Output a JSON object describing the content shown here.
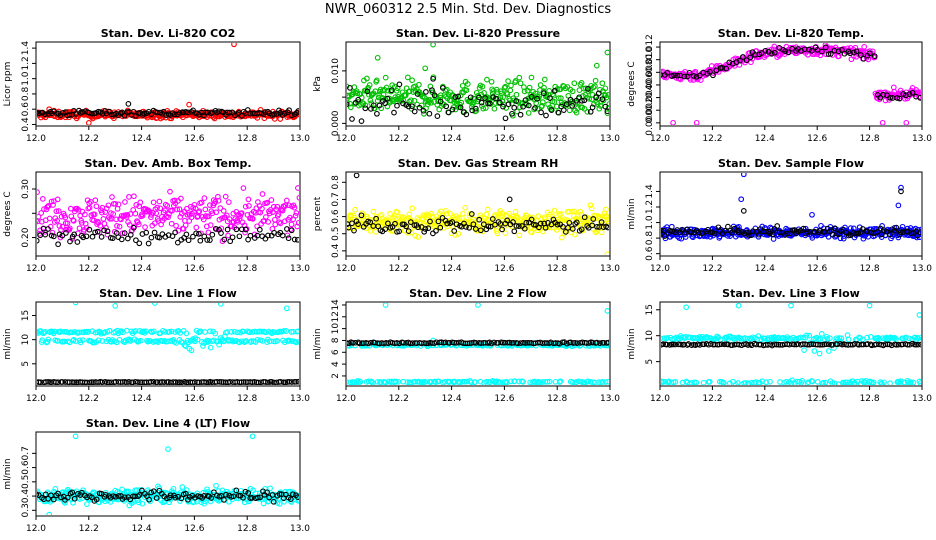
{
  "title": "NWR_060312  2.5 Min. Std. Dev. Diagnostics",
  "chart_data": [
    {
      "id": "co2",
      "type": "scatter",
      "title": "Stan. Dev. Li-820 CO2",
      "ylabel": "Licor ppm",
      "xlim": [
        12.0,
        13.0
      ],
      "ylim": [
        0.38,
        1.48
      ],
      "xticks": [
        12.0,
        12.2,
        12.4,
        12.6,
        12.8,
        13.0
      ],
      "yticks": [
        0.4,
        0.6,
        0.8,
        1.0,
        1.2,
        1.4
      ],
      "ytick_labels": [
        "0.4",
        "0.6",
        "0.8",
        "1.0",
        "1.2",
        "1.4"
      ],
      "series": [
        {
          "color": "#ff0000",
          "n": 340,
          "base": 0.53,
          "noise": 0.045,
          "outliers": [
            [
              12.75,
              1.45
            ],
            [
              12.05,
              0.6
            ],
            [
              12.58,
              0.66
            ],
            [
              12.2,
              0.42
            ]
          ]
        },
        {
          "color": "#000000",
          "n": 120,
          "base": 0.55,
          "noise": 0.035,
          "outliers": [
            [
              12.35,
              0.67
            ]
          ]
        }
      ]
    },
    {
      "id": "pressure",
      "type": "scatter",
      "title": "Stan. Dev. Li-820 Pressure",
      "ylabel": "kPa",
      "xlim": [
        12.0,
        13.0
      ],
      "ylim": [
        -0.0005,
        0.0155
      ],
      "xticks": [
        12.0,
        12.2,
        12.4,
        12.6,
        12.8,
        13.0
      ],
      "yticks": [
        0.0,
        0.005,
        0.01
      ],
      "ytick_labels": [
        "0.000",
        "",
        "0.010"
      ],
      "series": [
        {
          "color": "#00c000",
          "n": 360,
          "base": 0.005,
          "noise": 0.003,
          "outliers": [
            [
              12.33,
              0.015
            ],
            [
              12.3,
              0.0105
            ],
            [
              12.99,
              0.0135
            ],
            [
              12.95,
              0.011
            ],
            [
              12.12,
              0.0125
            ]
          ]
        },
        {
          "color": "#000000",
          "n": 90,
          "base": 0.004,
          "noise": 0.003,
          "outliers": [
            [
              12.33,
              0.0085
            ]
          ]
        }
      ]
    },
    {
      "id": "temp",
      "type": "scatter",
      "title": "Stan. Dev. Li-820 Temp.",
      "ylabel": "degrees C",
      "xlim": [
        12.0,
        13.0
      ],
      "ylim": [
        -0.0005,
        0.0128
      ],
      "xticks": [
        12.0,
        12.2,
        12.4,
        12.6,
        12.8,
        13.0
      ],
      "yticks": [
        0.0,
        0.002,
        0.004,
        0.006,
        0.008,
        0.01,
        0.012
      ],
      "ytick_labels": [
        "0.000",
        "0.002",
        "0.004",
        "0.006",
        "0.008",
        "0.010",
        "0.012"
      ],
      "series": [
        {
          "color": "#ff00ff",
          "n": 330,
          "base": "temp",
          "noise": 0.0008,
          "outliers": [
            [
              12.05,
              0.0
            ],
            [
              12.14,
              0.0
            ],
            [
              12.85,
              0.0
            ],
            [
              12.94,
              0.0
            ]
          ]
        },
        {
          "color": "#000000",
          "n": 80,
          "base": "temp",
          "noise": 0.0006,
          "outliers": []
        }
      ]
    },
    {
      "id": "ambbox",
      "type": "scatter",
      "title": "Stan. Dev. Amb. Box Temp.",
      "ylabel": "degrees C",
      "xlim": [
        12.0,
        13.0
      ],
      "ylim": [
        0.162,
        0.335
      ],
      "xticks": [
        12.0,
        12.2,
        12.4,
        12.6,
        12.8,
        13.0
      ],
      "yticks": [
        0.2,
        0.25,
        0.3
      ],
      "ytick_labels": [
        "0.20",
        "",
        "0.30"
      ],
      "series": [
        {
          "color": "#ff00ff",
          "n": 330,
          "base": 0.245,
          "noise": 0.04,
          "outliers": []
        },
        {
          "color": "#000000",
          "n": 90,
          "base": 0.205,
          "noise": 0.015,
          "outliers": []
        }
      ]
    },
    {
      "id": "rh",
      "type": "scatter",
      "title": "Stan. Dev. Gas Stream RH",
      "ylabel": "percent",
      "xlim": [
        12.0,
        13.0
      ],
      "ylim": [
        0.37,
        0.86
      ],
      "xticks": [
        12.0,
        12.2,
        12.4,
        12.6,
        12.8,
        13.0
      ],
      "yticks": [
        0.4,
        0.5,
        0.6,
        0.7,
        0.8
      ],
      "ytick_labels": [
        "0.4",
        "0.5",
        "0.6",
        "0.7",
        "0.8"
      ],
      "series": [
        {
          "color": "#ffff00",
          "n": 360,
          "base": 0.57,
          "noise": 0.07,
          "outliers": [
            [
              12.99,
              0.38
            ]
          ]
        },
        {
          "color": "#000000",
          "n": 110,
          "base": 0.55,
          "noise": 0.045,
          "outliers": [
            [
              12.04,
              0.84
            ],
            [
              12.62,
              0.7
            ]
          ]
        }
      ]
    },
    {
      "id": "sample",
      "type": "scatter",
      "title": "Stan. Dev. Sample Flow",
      "ylabel": "ml/min",
      "xlim": [
        12.0,
        13.0
      ],
      "ylim": [
        0.57,
        1.65
      ],
      "xticks": [
        12.0,
        12.2,
        12.4,
        12.6,
        12.8,
        13.0
      ],
      "yticks": [
        0.6,
        0.8,
        1.0,
        1.2,
        1.4
      ],
      "ytick_labels": [
        "0.6",
        "0.8",
        "1.0",
        "1.2",
        "1.4"
      ],
      "series": [
        {
          "color": "#0000ff",
          "n": 360,
          "base": 0.87,
          "noise": 0.07,
          "outliers": [
            [
              12.32,
              1.62
            ],
            [
              12.31,
              1.3
            ],
            [
              12.92,
              1.45
            ],
            [
              12.91,
              1.22
            ],
            [
              12.58,
              1.1
            ]
          ]
        },
        {
          "color": "#000000",
          "n": 110,
          "base": 0.88,
          "noise": 0.05,
          "outliers": [
            [
              12.32,
              1.15
            ],
            [
              12.92,
              1.4
            ]
          ]
        }
      ]
    },
    {
      "id": "line1",
      "type": "scatter",
      "title": "Stan. Dev. Line 1 Flow",
      "ylabel": "ml/min",
      "xlim": [
        12.0,
        13.0
      ],
      "ylim": [
        0.4,
        17.8
      ],
      "xticks": [
        12.0,
        12.2,
        12.4,
        12.6,
        12.8,
        13.0
      ],
      "yticks": [
        5,
        10,
        15
      ],
      "ytick_labels": [
        "5",
        "10",
        "15"
      ],
      "series": [
        {
          "color": "#00ffff",
          "n": 260,
          "base": "line1",
          "noise": 0.3,
          "outliers": [
            [
              12.15,
              17.7
            ],
            [
              12.45,
              17.6
            ],
            [
              12.7,
              17.4
            ],
            [
              12.95,
              16.5
            ],
            [
              12.3,
              17.0
            ]
          ]
        },
        {
          "color": "#000000",
          "n": 120,
          "base": 1.2,
          "noise": 0.08,
          "outliers": []
        }
      ]
    },
    {
      "id": "line2",
      "type": "scatter",
      "title": "Stan. Dev. Line 2 Flow",
      "ylabel": "ml/min",
      "xlim": [
        12.0,
        13.0
      ],
      "ylim": [
        0.3,
        14.5
      ],
      "xticks": [
        12.0,
        12.2,
        12.4,
        12.6,
        12.8,
        13.0
      ],
      "yticks": [
        2,
        4,
        6,
        8,
        10,
        12,
        14
      ],
      "ytick_labels": [
        "2",
        "4",
        "6",
        "8",
        "10",
        "12",
        "14"
      ],
      "series": [
        {
          "color": "#00ffff",
          "n": 260,
          "base": "line2",
          "noise": 0.15,
          "outliers": [
            [
              12.15,
              14.0
            ],
            [
              12.5,
              14.0
            ],
            [
              12.99,
              13.0
            ],
            [
              12.33,
              8.0
            ]
          ]
        },
        {
          "color": "#000000",
          "n": 120,
          "base": 7.6,
          "noise": 0.12,
          "outliers": []
        }
      ]
    },
    {
      "id": "line3",
      "type": "scatter",
      "title": "Stan. Dev. Line 3 Flow",
      "ylabel": "ml/min",
      "xlim": [
        12.0,
        13.0
      ],
      "ylim": [
        0.3,
        16.5
      ],
      "xticks": [
        12.0,
        12.2,
        12.4,
        12.6,
        12.8,
        13.0
      ],
      "yticks": [
        5,
        10,
        15
      ],
      "ytick_labels": [
        "5",
        "10",
        "15"
      ],
      "series": [
        {
          "color": "#00ffff",
          "n": 260,
          "base": "line3",
          "noise": 0.35,
          "outliers": [
            [
              12.3,
              15.8
            ],
            [
              12.5,
              15.8
            ],
            [
              12.8,
              15.8
            ],
            [
              12.99,
              14.0
            ],
            [
              12.1,
              15.5
            ]
          ]
        },
        {
          "color": "#000000",
          "n": 120,
          "base": 8.3,
          "noise": 0.15,
          "outliers": []
        }
      ]
    },
    {
      "id": "line4",
      "type": "scatter",
      "title": "Stan. Dev. Line 4 (LT) Flow",
      "ylabel": "ml/min",
      "xlim": [
        12.0,
        13.0
      ],
      "ylim": [
        0.26,
        0.85
      ],
      "xticks": [
        12.0,
        12.2,
        12.4,
        12.6,
        12.8,
        13.0
      ],
      "yticks": [
        0.3,
        0.4,
        0.5,
        0.6,
        0.7
      ],
      "ytick_labels": [
        "0.3",
        "0.4",
        "0.5",
        "0.6",
        "0.7"
      ],
      "series": [
        {
          "color": "#00ffff",
          "n": 360,
          "base": 0.4,
          "noise": 0.05,
          "outliers": [
            [
              12.15,
              0.82
            ],
            [
              12.5,
              0.73
            ],
            [
              12.82,
              0.82
            ],
            [
              12.05,
              0.27
            ]
          ]
        },
        {
          "color": "#000000",
          "n": 110,
          "base": 0.4,
          "noise": 0.035,
          "outliers": []
        }
      ]
    }
  ]
}
